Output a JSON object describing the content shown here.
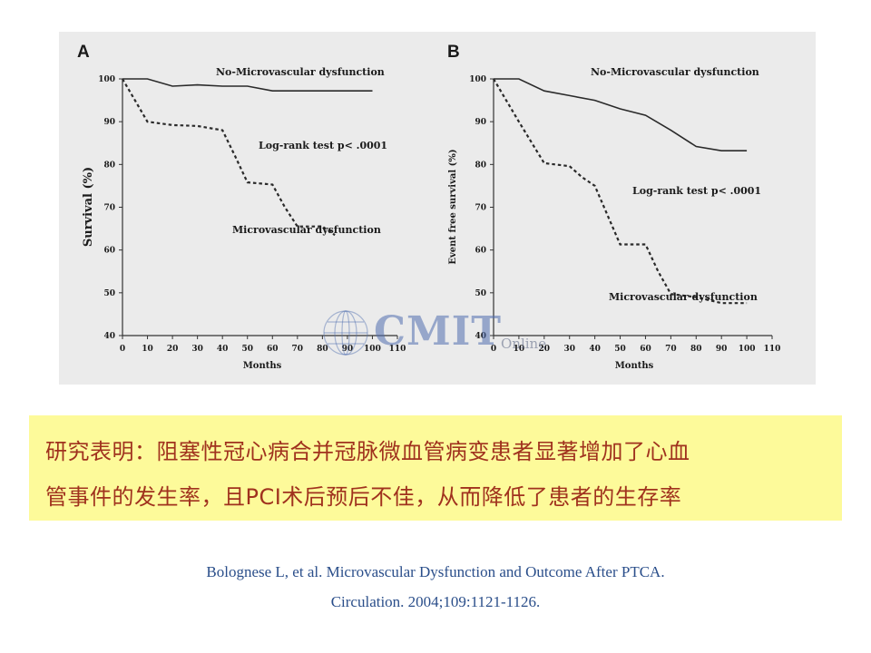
{
  "colors": {
    "panel_background": "#ebebeb",
    "note_background": "#fdfa9a",
    "note_text": "#a0321e",
    "citation_text": "#2a4e8a",
    "watermark": "#506eaf"
  },
  "watermark": {
    "text": "CMIT",
    "subtext": "Online",
    "icon": "globe-icon"
  },
  "chart_data": [
    {
      "type": "line",
      "panel_label": "A",
      "title": "",
      "xlabel": "Months",
      "ylabel": "Survival (%)",
      "xlim": [
        0,
        110
      ],
      "ylim": [
        40,
        100
      ],
      "x_ticks": [
        0,
        10,
        20,
        30,
        40,
        50,
        60,
        70,
        80,
        90,
        100,
        110
      ],
      "y_ticks": [
        40,
        50,
        60,
        70,
        80,
        90,
        100
      ],
      "grid": false,
      "series": [
        {
          "name": "No-Microvascular dysfunction",
          "style": "solid",
          "points": [
            [
              0,
              100
            ],
            [
              10,
              100
            ],
            [
              20,
              98.3
            ],
            [
              30,
              98.6
            ],
            [
              40,
              98.3
            ],
            [
              50,
              98.3
            ],
            [
              60,
              97.2
            ],
            [
              70,
              97.2
            ],
            [
              80,
              97.2
            ],
            [
              90,
              97.2
            ],
            [
              100,
              97.2
            ]
          ]
        },
        {
          "name": "Microvascular dysfunction",
          "style": "dashed",
          "points": [
            [
              0,
              100
            ],
            [
              10,
              90
            ],
            [
              20,
              89.2
            ],
            [
              30,
              89
            ],
            [
              40,
              88
            ],
            [
              45,
              82
            ],
            [
              50,
              75.8
            ],
            [
              60,
              75.3
            ],
            [
              65,
              70
            ],
            [
              70,
              65.5
            ],
            [
              80,
              65.5
            ],
            [
              85,
              63.5
            ]
          ]
        }
      ],
      "annotations": [
        "Log-rank test p< .0001"
      ]
    },
    {
      "type": "line",
      "panel_label": "B",
      "title": "",
      "xlabel": "Months",
      "ylabel": "Event free survival (%)",
      "xlim": [
        0,
        110
      ],
      "ylim": [
        40,
        100
      ],
      "x_ticks": [
        0,
        10,
        20,
        30,
        40,
        50,
        60,
        70,
        80,
        90,
        100,
        110
      ],
      "y_ticks": [
        40,
        50,
        60,
        70,
        80,
        90,
        100
      ],
      "grid": false,
      "series": [
        {
          "name": "No-Microvascular dysfunction",
          "style": "solid",
          "points": [
            [
              0,
              100
            ],
            [
              10,
              100
            ],
            [
              20,
              97.2
            ],
            [
              30,
              96.1
            ],
            [
              40,
              95
            ],
            [
              50,
              93
            ],
            [
              60,
              91.5
            ],
            [
              70,
              88
            ],
            [
              80,
              84.2
            ],
            [
              90,
              83.2
            ],
            [
              100,
              83.2
            ]
          ]
        },
        {
          "name": "Microvascular dysfunction",
          "style": "dashed",
          "points": [
            [
              0,
              100
            ],
            [
              10,
              90
            ],
            [
              20,
              80.3
            ],
            [
              30,
              79.6
            ],
            [
              35,
              77
            ],
            [
              40,
              75
            ],
            [
              50,
              61.3
            ],
            [
              60,
              61.3
            ],
            [
              65,
              55
            ],
            [
              70,
              49.7
            ],
            [
              80,
              49
            ],
            [
              90,
              47.6
            ],
            [
              100,
              47.6
            ]
          ]
        }
      ],
      "annotations": [
        "Log-rank test p< .0001"
      ]
    }
  ],
  "note": {
    "line1": "研究表明：阻塞性冠心病合并冠脉微血管病变患者显著增加了心血",
    "line2": "管事件的发生率，且PCI术后预后不佳，从而降低了患者的生存率"
  },
  "citation": {
    "line1": "Bolognese L, et al. Microvascular Dysfunction and Outcome After PTCA.",
    "line2": "Circulation. 2004;109:1121-1126."
  }
}
